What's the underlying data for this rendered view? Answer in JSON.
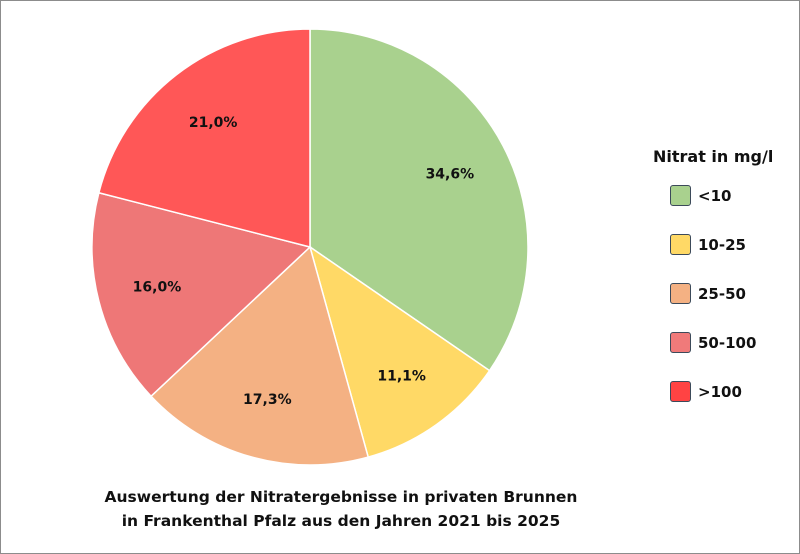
{
  "chart_data": {
    "type": "pie",
    "title": "Auswertung der Nitratergebnisse in privaten Brunnen",
    "subtitle": "in Frankenthal Pfalz aus den Jahren 2021 bis 2025",
    "legend_title": "Nitrat in mg/l",
    "legend_placement": "right",
    "categories": [
      "<10",
      "10-25",
      "25-50",
      "50-100",
      ">100"
    ],
    "values": [
      34.6,
      11.1,
      17.3,
      16.0,
      21.0
    ],
    "data_labels": [
      "34,6%",
      "11,1%",
      "17,3%",
      "16,0%",
      "21,0%"
    ],
    "colors": [
      "#A9D18E",
      "#FFD966",
      "#F4B183",
      "#EE7777",
      "#FF5757"
    ],
    "legend_colors": [
      "#A9D18E",
      "#FFD966",
      "#F4B183",
      "#F07A7A",
      "#FF4343"
    ],
    "start_angle": "12 o'clock",
    "direction": "clockwise"
  }
}
